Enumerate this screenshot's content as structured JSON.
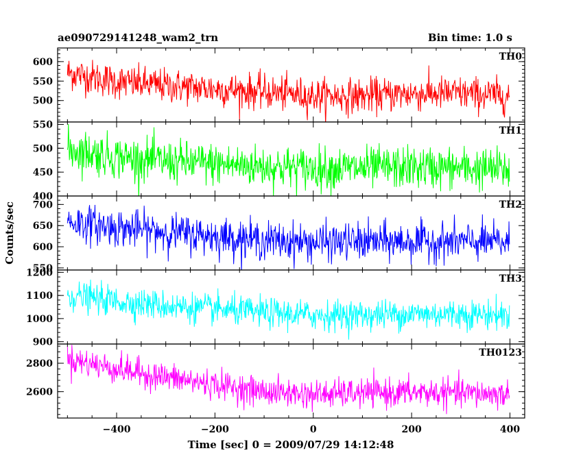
{
  "header": {
    "title": "ae090729141248_wam2_trn",
    "bin_time": "Bin time: 1.0 s"
  },
  "chart_data": {
    "type": "line",
    "title": "ae090729141248_wam2_trn",
    "subtitle": "Bin time: 1.0 s",
    "xlabel": "Time [sec] 0 = 2009/07/29 14:12:48",
    "ylabel": "Counts/sec",
    "xlim": [
      -520,
      430
    ],
    "x_ticks": [
      -400,
      -200,
      0,
      200,
      400
    ],
    "x_tick_labels": [
      "−400",
      "−200",
      "0",
      "200",
      "400"
    ],
    "x_start": -500,
    "x_end": 399,
    "bin_sec": 1,
    "grid": false,
    "panels": [
      {
        "name": "TH0",
        "color": "#ff0000",
        "ylim": [
          445,
          635
        ],
        "y_ticks": [
          500,
          550,
          600
        ],
        "trend": {
          "x": [
            -500,
            -400,
            -300,
            -200,
            -100,
            0,
            100,
            200,
            300,
            399
          ],
          "y": [
            572,
            548,
            538,
            530,
            522,
            512,
            512,
            518,
            518,
            512
          ]
        },
        "noise": 22
      },
      {
        "name": "TH1",
        "color": "#00ff00",
        "ylim": [
          400,
          555
        ],
        "y_ticks": [
          400,
          450,
          500,
          550
        ],
        "trend": {
          "x": [
            -500,
            -400,
            -300,
            -200,
            -100,
            0,
            100,
            200,
            300,
            399
          ],
          "y": [
            498,
            482,
            472,
            467,
            462,
            458,
            458,
            460,
            458,
            455
          ]
        },
        "noise": 22
      },
      {
        "name": "TH2",
        "color": "#0000ff",
        "ylim": [
          545,
          720
        ],
        "y_ticks": [
          550,
          600,
          650,
          700
        ],
        "trend": {
          "x": [
            -500,
            -400,
            -300,
            -200,
            -100,
            0,
            100,
            200,
            300,
            399
          ],
          "y": [
            660,
            645,
            635,
            625,
            615,
            610,
            612,
            612,
            612,
            610
          ]
        },
        "noise": 22
      },
      {
        "name": "TH3",
        "color": "#00ffff",
        "ylim": [
          890,
          1210
        ],
        "y_ticks": [
          900,
          1000,
          1100,
          1200
        ],
        "trend": {
          "x": [
            -500,
            -400,
            -300,
            -200,
            -100,
            0,
            100,
            200,
            300,
            399
          ],
          "y": [
            1100,
            1075,
            1055,
            1040,
            1025,
            1015,
            1015,
            1020,
            1020,
            1015
          ]
        },
        "noise": 32
      },
      {
        "name": "TH0123",
        "color": "#ff00ff",
        "ylim": [
          2415,
          2935
        ],
        "y_ticks": [
          2600,
          2800
        ],
        "trend": {
          "x": [
            -500,
            -400,
            -300,
            -200,
            -100,
            0,
            100,
            200,
            300,
            399
          ],
          "y": [
            2830,
            2760,
            2700,
            2650,
            2600,
            2580,
            2590,
            2595,
            2590,
            2580
          ]
        },
        "noise": 50
      }
    ]
  }
}
